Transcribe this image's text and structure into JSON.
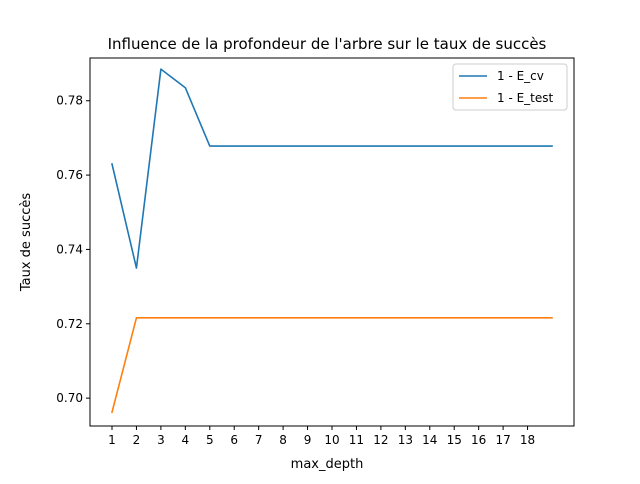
{
  "chart_data": {
    "type": "line",
    "title": "Influence de la profondeur de l'arbre sur le taux de succès",
    "xlabel": "max_depth",
    "ylabel": "Taux de succès",
    "x": [
      1,
      2,
      3,
      4,
      5,
      6,
      7,
      8,
      9,
      10,
      11,
      12,
      13,
      14,
      15,
      16,
      17,
      18,
      19
    ],
    "xticks": [
      "1",
      "2",
      "3",
      "4",
      "5",
      "6",
      "7",
      "8",
      "9",
      "10",
      "11",
      "12",
      "13",
      "14",
      "15",
      "16",
      "17",
      "18"
    ],
    "yticks": [
      "0.70",
      "0.72",
      "0.74",
      "0.76",
      "0.78"
    ],
    "xlim": [
      0.1,
      19.9
    ],
    "ylim": [
      0.6925,
      0.7915
    ],
    "grid": false,
    "legend_position": "top-right",
    "series": [
      {
        "name": "1 - E_cv",
        "color": "#1f77b4",
        "values": [
          0.763,
          0.735,
          0.7885,
          0.7835,
          0.7678,
          0.7678,
          0.7678,
          0.7678,
          0.7678,
          0.7678,
          0.7678,
          0.7678,
          0.7678,
          0.7678,
          0.7678,
          0.7678,
          0.7678,
          0.7678,
          0.7678
        ]
      },
      {
        "name": "1 - E_test",
        "color": "#ff7f0e",
        "values": [
          0.6962,
          0.7216,
          0.7216,
          0.7216,
          0.7216,
          0.7216,
          0.7216,
          0.7216,
          0.7216,
          0.7216,
          0.7216,
          0.7216,
          0.7216,
          0.7216,
          0.7216,
          0.7216,
          0.7216,
          0.7216,
          0.7216
        ]
      }
    ]
  }
}
